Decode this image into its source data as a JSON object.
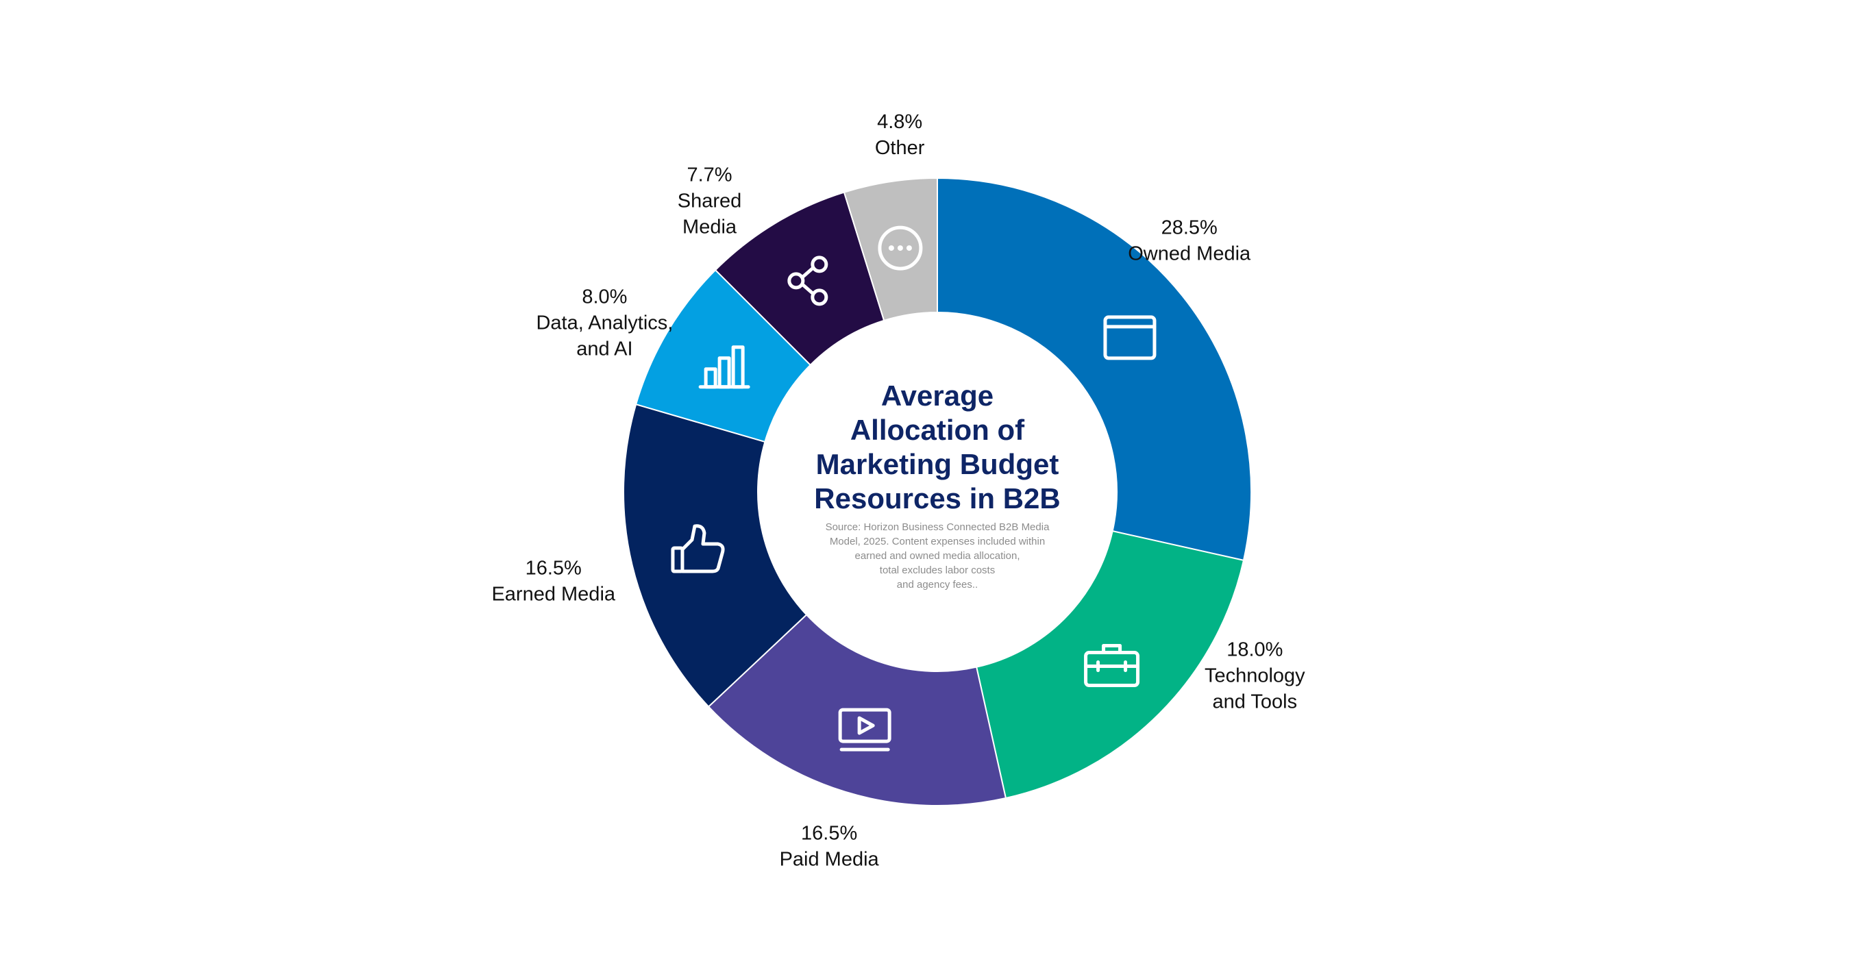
{
  "chart_data": {
    "type": "pie",
    "variant": "donut",
    "title_lines": [
      "Average",
      "Allocation of",
      "Marketing Budget",
      "Resources in B2B"
    ],
    "source_lines": [
      "Source: Horizon Business Connected B2B Media",
      "Model, 2025. Content expenses included within",
      "earned and owned media allocation,",
      "total excludes labor costs",
      "and agency fees.."
    ],
    "slices": [
      {
        "id": "owned-media",
        "value": 28.5,
        "pct_label": "28.5%",
        "label_lines": [
          "Owned Media"
        ],
        "color": "#0070b9",
        "icon": "browser-window-icon"
      },
      {
        "id": "technology-and-tools",
        "value": 18.0,
        "pct_label": "18.0%",
        "label_lines": [
          "Technology",
          "and Tools"
        ],
        "color": "#02b386",
        "icon": "toolbox-icon"
      },
      {
        "id": "paid-media",
        "value": 16.5,
        "pct_label": "16.5%",
        "label_lines": [
          "Paid Media"
        ],
        "color": "#4e4499",
        "icon": "video-play-icon"
      },
      {
        "id": "earned-media",
        "value": 16.5,
        "pct_label": "16.5%",
        "label_lines": [
          "Earned Media"
        ],
        "color": "#03235f",
        "icon": "thumbs-up-icon"
      },
      {
        "id": "data-analytics-ai",
        "value": 8.0,
        "pct_label": "8.0%",
        "label_lines": [
          "Data, Analytics,",
          "and AI"
        ],
        "color": "#03a0e2",
        "icon": "bar-chart-icon"
      },
      {
        "id": "shared-media",
        "value": 7.7,
        "pct_label": "7.7%",
        "label_lines": [
          "Shared",
          "Media"
        ],
        "color": "#230c45",
        "icon": "share-icon"
      },
      {
        "id": "other",
        "value": 4.8,
        "pct_label": "4.8%",
        "label_lines": [
          "Other"
        ],
        "color": "#bfbfbf",
        "icon": "more-dots-icon"
      }
    ]
  }
}
